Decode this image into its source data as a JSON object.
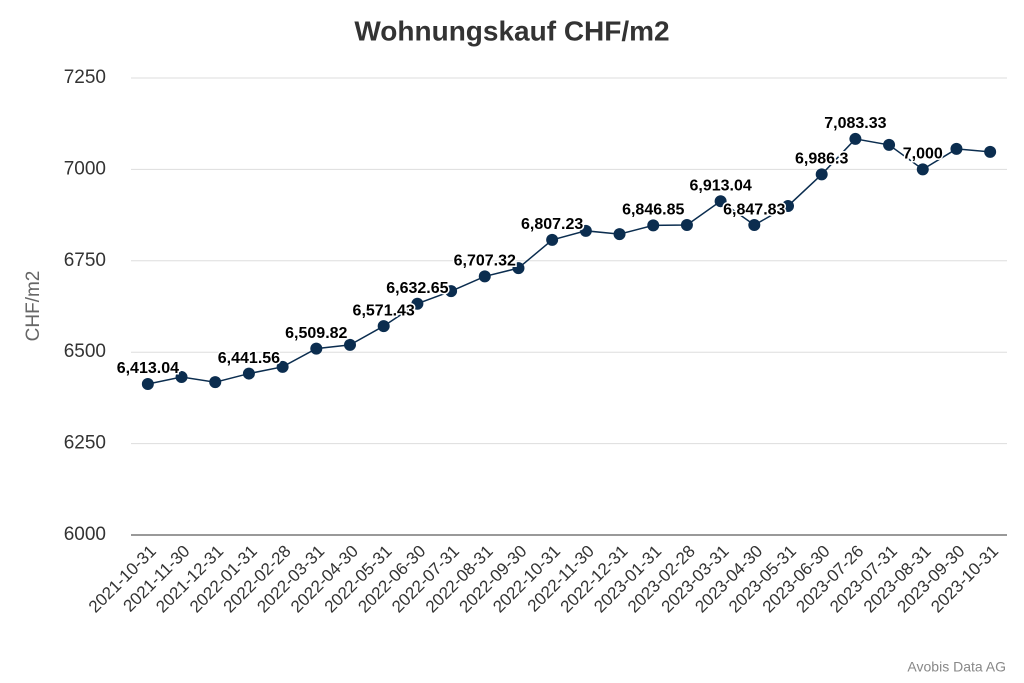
{
  "chart_data": {
    "type": "line",
    "title": "Wohnungskauf CHF/m2",
    "y_label": "CHF/m2",
    "source": "Avobis Data AG",
    "categories": [
      "2021-10-31",
      "2021-11-30",
      "2021-12-31",
      "2022-01-31",
      "2022-02-28",
      "2022-03-31",
      "2022-04-30",
      "2022-05-31",
      "2022-06-30",
      "2022-07-31",
      "2022-08-31",
      "2022-09-30",
      "2022-10-31",
      "2022-11-30",
      "2022-12-31",
      "2023-01-31",
      "2023-02-28",
      "2023-03-31",
      "2023-04-30",
      "2023-05-31",
      "2023-06-30",
      "2023-07-26",
      "2023-07-31",
      "2023-08-31",
      "2023-09-30",
      "2023-10-31"
    ],
    "values": [
      6413.04,
      6432,
      6418,
      6441.56,
      6460,
      6509.82,
      6520,
      6571.43,
      6632.65,
      6667,
      6707.32,
      6730,
      6807.23,
      6832,
      6823,
      6846.85,
      6848,
      6913.04,
      6847.83,
      6900,
      6986.3,
      7083.33,
      7067,
      7000,
      7056,
      7048
    ],
    "value_labels": [
      "6,413.04",
      null,
      null,
      "6,441.56",
      null,
      "6,509.82",
      null,
      "6,571.43",
      "6,632.65",
      null,
      "6,707.32",
      null,
      "6,807.23",
      null,
      null,
      "6,846.85",
      null,
      "6,913.04",
      "6,847.83",
      null,
      "6,986.3",
      "7,083.33",
      null,
      "7,000",
      null,
      null
    ],
    "color": "#0b2d4f",
    "ylim": [
      6000,
      7250
    ],
    "yticks": [
      6000,
      6250,
      6500,
      6750,
      7000,
      7250
    ],
    "grid": true
  }
}
